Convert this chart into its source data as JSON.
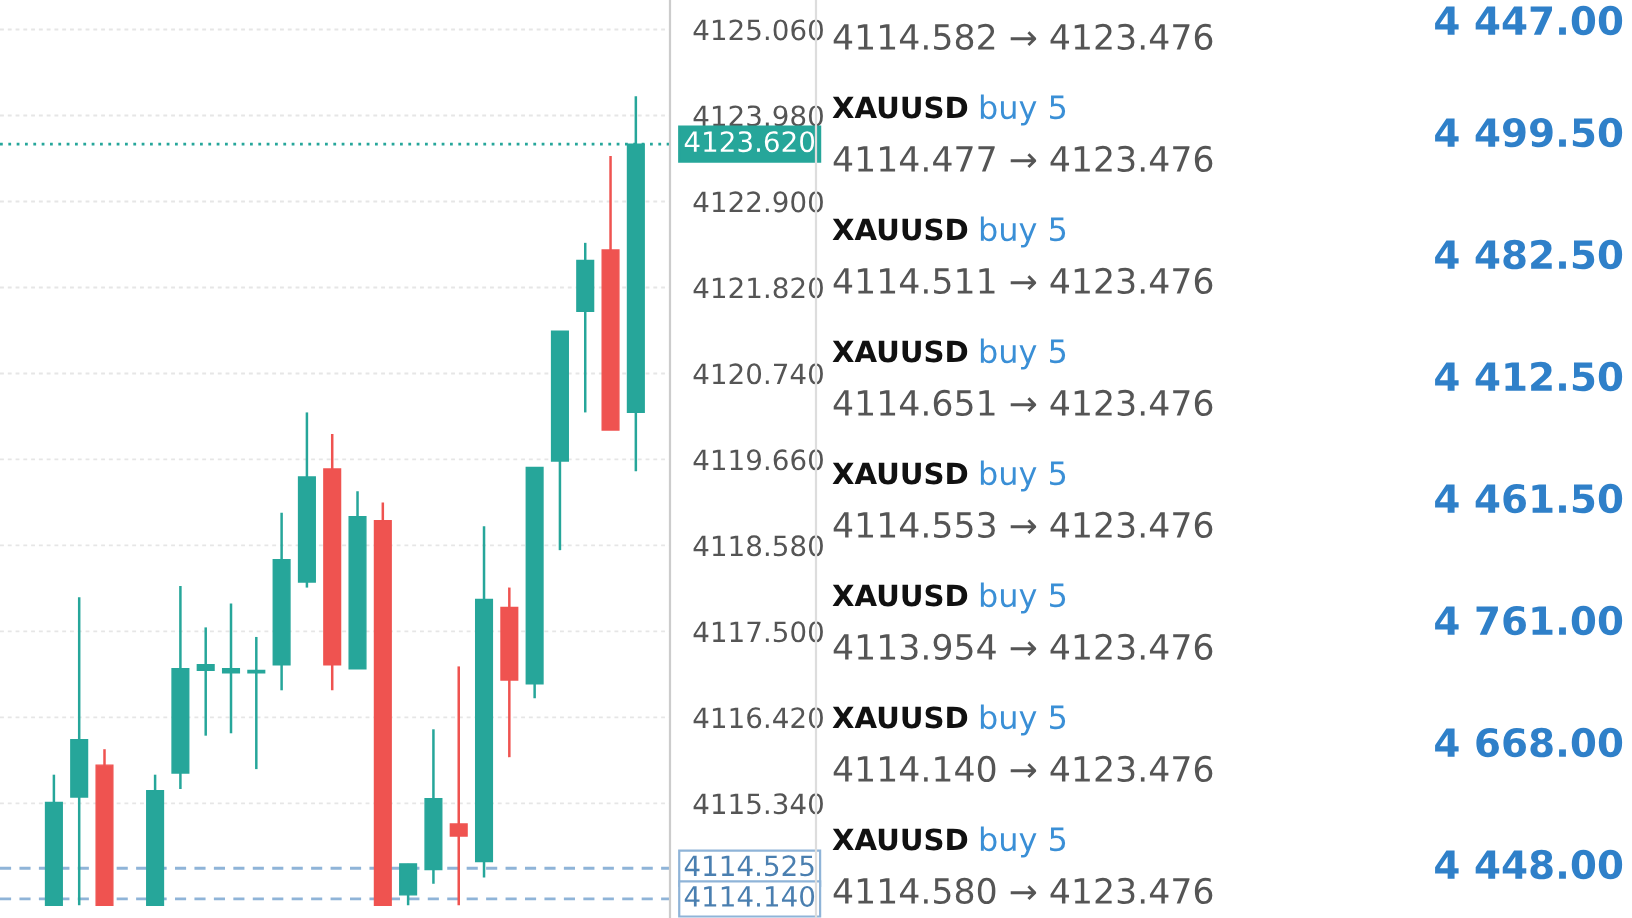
{
  "chart_data": [
    {
      "type": "candlestick",
      "categories": [
        null,
        null,
        null,
        null,
        null,
        null,
        null,
        null,
        null,
        null,
        null,
        null,
        null,
        null,
        null,
        null,
        null,
        null,
        null,
        null,
        null,
        null,
        null,
        null
      ],
      "ohlc": [
        [
          4114.06,
          4115.7,
          4114.06,
          4115.35
        ],
        [
          4115.42,
          4117.93,
          4114.06,
          4116.14
        ],
        [
          4115.82,
          4116.02,
          4114.06,
          4114.06
        ],
        null,
        [
          4114.06,
          4115.7,
          4114.06,
          4115.5
        ],
        [
          4115.72,
          4118.07,
          4115.52,
          4117.03
        ],
        [
          4117.01,
          4117.55,
          4116.19,
          4117.08
        ],
        [
          4116.98,
          4117.85,
          4116.22,
          4117.03
        ],
        [
          4116.98,
          4117.43,
          4115.77,
          4117.01
        ],
        [
          4117.08,
          4118.99,
          4116.76,
          4118.4
        ],
        [
          4118.12,
          4120.25,
          4118.05,
          4119.44
        ],
        [
          4119.54,
          4119.98,
          4116.76,
          4117.08
        ],
        [
          4117.03,
          4119.26,
          4117.03,
          4118.94
        ],
        [
          4118.89,
          4119.12,
          4114.06,
          4114.06
        ],
        [
          4114.19,
          4114.58,
          4114.06,
          4114.58
        ],
        [
          4114.51,
          4116.27,
          4114.33,
          4115.4
        ],
        [
          4115.08,
          4117.06,
          4114.06,
          4114.93
        ],
        [
          4114.61,
          4118.82,
          4114.41,
          4117.9
        ],
        [
          4117.8,
          4118.05,
          4115.92,
          4116.89
        ],
        [
          4116.84,
          4119.56,
          4116.66,
          4119.56
        ],
        [
          4119.64,
          4121.27,
          4118.52,
          4121.27
        ],
        [
          4121.52,
          4122.38,
          4120.25,
          4122.16
        ],
        [
          4122.29,
          4123.47,
          4120.03,
          4120.03
        ],
        [
          4120.25,
          4124.22,
          4119.51,
          4123.62
        ]
      ],
      "colors": [
        "#26a69a",
        "#26a69a",
        "#ef5350",
        null,
        "#26a69a",
        "#26a69a",
        "#26a69a",
        "#26a69a",
        "#26a69a",
        "#26a69a",
        "#26a69a",
        "#ef5350",
        "#26a69a",
        "#ef5350",
        "#26a69a",
        "#26a69a",
        "#ef5350",
        "#26a69a",
        "#ef5350",
        "#26a69a",
        "#26a69a",
        "#26a69a",
        "#ef5350",
        "#26a69a"
      ],
      "ylim": [
        4113.9,
        4125.43
      ],
      "yticks": [
        {
          "value": 4125.06,
          "label": "4125.060"
        },
        {
          "value": 4123.98,
          "label": "4123.980"
        },
        {
          "value": 4122.9,
          "label": "4122.900"
        },
        {
          "value": 4121.82,
          "label": "4121.820"
        },
        {
          "value": 4120.74,
          "label": "4120.740"
        },
        {
          "value": 4119.66,
          "label": "4119.660"
        },
        {
          "value": 4118.58,
          "label": "4118.580"
        },
        {
          "value": 4117.5,
          "label": "4117.500"
        },
        {
          "value": 4116.42,
          "label": "4116.420"
        },
        {
          "value": 4115.34,
          "label": "4115.340"
        }
      ],
      "grid": "y",
      "ref_lines": [
        {
          "axis": "y",
          "value": 4123.62,
          "label": "4123.620",
          "color": "#26a69a",
          "line_style": "dotted"
        },
        {
          "axis": "y",
          "value": 4114.525,
          "label": "4114.525",
          "color": "#8fb4d8",
          "line_style": "dashed"
        },
        {
          "axis": "y",
          "value": 4114.14,
          "label": "4114.140",
          "color": "#8fb4d8",
          "line_style": "dashed"
        }
      ]
    },
    {
      "type": "other",
      "annotations": [
        "4114.582 → 4123.476",
        "4 447.00",
        "XAUUSD",
        "buy 5",
        "4114.477 → 4123.476",
        "4 499.50",
        "XAUUSD",
        "buy 5",
        "4114.511 → 4123.476",
        "4 482.50",
        "XAUUSD",
        "buy 5",
        "4114.651 → 4123.476",
        "4 412.50",
        "XAUUSD",
        "buy 5",
        "4114.553 → 4123.476",
        "4 461.50",
        "XAUUSD",
        "buy 5",
        "4113.954 → 4123.476",
        "4 761.00",
        "XAUUSD",
        "buy 5",
        "4114.140 → 4123.476",
        "4 668.00",
        "XAUUSD",
        "buy 5",
        "4114.580 → 4123.476",
        "4 448.00"
      ]
    }
  ]
}
